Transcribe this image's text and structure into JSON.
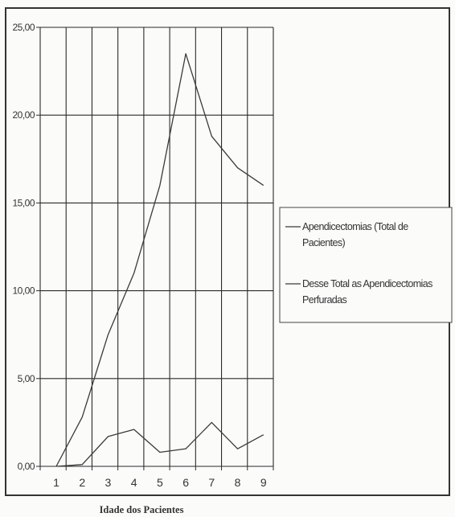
{
  "chart_data": {
    "type": "line",
    "x": [
      1,
      2,
      3,
      4,
      5,
      6,
      7,
      8,
      9
    ],
    "series": [
      {
        "name": "Apendicectomias (Total de Pacientes)",
        "name_lines": [
          "Apendicectomias (Total de",
          "Pacientes)"
        ],
        "values": [
          0.0,
          2.8,
          7.5,
          11.0,
          16.0,
          23.5,
          18.8,
          17.0,
          16.0
        ]
      },
      {
        "name": "Desse Total as Apendicectomias Perfuradas",
        "name_lines": [
          "Desse Total as Apendicectomias",
          "Perfuradas"
        ],
        "values": [
          0.0,
          0.1,
          1.7,
          2.1,
          0.8,
          1.0,
          2.5,
          1.0,
          1.8
        ]
      }
    ],
    "yticks": [
      "0,00",
      "5,00",
      "10,00",
      "15,00",
      "20,00",
      "25,00"
    ],
    "xticks": [
      "1",
      "2",
      "3",
      "4",
      "5",
      "6",
      "7",
      "8",
      "9"
    ],
    "xlabel": "Idade dos Pacientes",
    "ylabel": "",
    "title": "",
    "ylim": [
      0,
      25
    ],
    "grid": true,
    "legend": "right",
    "colors": {
      "line": "#3a3a3a",
      "grid": "#2a2a2a",
      "background": "#fbfbfa"
    }
  }
}
